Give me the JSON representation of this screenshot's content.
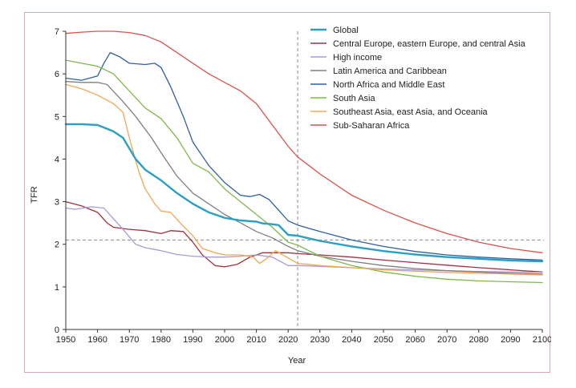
{
  "chart_data": {
    "type": "line",
    "title": "",
    "xlabel": "Year",
    "ylabel": "TFR",
    "xlim": [
      1950,
      2100
    ],
    "ylim": [
      0,
      7
    ],
    "xticks": [
      1950,
      1960,
      1970,
      1980,
      1990,
      2000,
      2010,
      2020,
      2030,
      2040,
      2050,
      2060,
      2070,
      2080,
      2090,
      2100
    ],
    "yticks": [
      0,
      1,
      2,
      3,
      4,
      5,
      6,
      7
    ],
    "grid": false,
    "legend_position": "top-right",
    "reference_lines": [
      {
        "orientation": "horizontal",
        "value": 2.1,
        "style": "dashed"
      },
      {
        "orientation": "vertical",
        "value": 2023,
        "style": "dashed"
      }
    ],
    "series": [
      {
        "name": "Global",
        "color": "#2a9fc3",
        "width": 2.4,
        "points": [
          [
            1950,
            4.82
          ],
          [
            1955,
            4.82
          ],
          [
            1960,
            4.8
          ],
          [
            1965,
            4.65
          ],
          [
            1968,
            4.5
          ],
          [
            1972,
            4.0
          ],
          [
            1975,
            3.75
          ],
          [
            1980,
            3.5
          ],
          [
            1985,
            3.2
          ],
          [
            1990,
            2.95
          ],
          [
            1995,
            2.75
          ],
          [
            2000,
            2.62
          ],
          [
            2005,
            2.56
          ],
          [
            2010,
            2.53
          ],
          [
            2012,
            2.49
          ],
          [
            2015,
            2.47
          ],
          [
            2017,
            2.45
          ],
          [
            2020,
            2.22
          ],
          [
            2023,
            2.2
          ],
          [
            2030,
            2.08
          ],
          [
            2040,
            1.95
          ],
          [
            2050,
            1.84
          ],
          [
            2060,
            1.76
          ],
          [
            2070,
            1.7
          ],
          [
            2080,
            1.66
          ],
          [
            2090,
            1.62
          ],
          [
            2100,
            1.6
          ]
        ]
      },
      {
        "name": "Central Europe, eastern Europe, and central Asia",
        "color": "#a0303c",
        "width": 1.3,
        "points": [
          [
            1950,
            3.0
          ],
          [
            1955,
            2.9
          ],
          [
            1960,
            2.75
          ],
          [
            1963,
            2.5
          ],
          [
            1965,
            2.4
          ],
          [
            1970,
            2.35
          ],
          [
            1975,
            2.32
          ],
          [
            1980,
            2.25
          ],
          [
            1983,
            2.32
          ],
          [
            1987,
            2.3
          ],
          [
            1990,
            2.05
          ],
          [
            1993,
            1.75
          ],
          [
            1997,
            1.5
          ],
          [
            2000,
            1.47
          ],
          [
            2004,
            1.53
          ],
          [
            2008,
            1.7
          ],
          [
            2012,
            1.8
          ],
          [
            2015,
            1.8
          ],
          [
            2020,
            1.8
          ],
          [
            2023,
            1.78
          ],
          [
            2030,
            1.75
          ],
          [
            2040,
            1.7
          ],
          [
            2050,
            1.63
          ],
          [
            2060,
            1.57
          ],
          [
            2070,
            1.51
          ],
          [
            2080,
            1.45
          ],
          [
            2090,
            1.4
          ],
          [
            2100,
            1.35
          ]
        ]
      },
      {
        "name": "High income",
        "color": "#a89ad6",
        "width": 1.3,
        "points": [
          [
            1950,
            2.85
          ],
          [
            1953,
            2.82
          ],
          [
            1958,
            2.88
          ],
          [
            1962,
            2.85
          ],
          [
            1965,
            2.6
          ],
          [
            1968,
            2.35
          ],
          [
            1972,
            2.0
          ],
          [
            1975,
            1.92
          ],
          [
            1980,
            1.85
          ],
          [
            1985,
            1.76
          ],
          [
            1990,
            1.72
          ],
          [
            1995,
            1.7
          ],
          [
            2000,
            1.7
          ],
          [
            2005,
            1.72
          ],
          [
            2010,
            1.75
          ],
          [
            2015,
            1.7
          ],
          [
            2020,
            1.5
          ],
          [
            2023,
            1.5
          ],
          [
            2030,
            1.48
          ],
          [
            2040,
            1.45
          ],
          [
            2050,
            1.42
          ],
          [
            2060,
            1.4
          ],
          [
            2070,
            1.38
          ],
          [
            2080,
            1.36
          ],
          [
            2090,
            1.35
          ],
          [
            2100,
            1.34
          ]
        ]
      },
      {
        "name": "Latin America and Caribbean",
        "color": "#7f7f7f",
        "width": 1.3,
        "points": [
          [
            1950,
            5.82
          ],
          [
            1955,
            5.8
          ],
          [
            1960,
            5.8
          ],
          [
            1963,
            5.75
          ],
          [
            1968,
            5.35
          ],
          [
            1972,
            5.0
          ],
          [
            1977,
            4.5
          ],
          [
            1980,
            4.15
          ],
          [
            1985,
            3.6
          ],
          [
            1990,
            3.2
          ],
          [
            1995,
            2.95
          ],
          [
            2000,
            2.7
          ],
          [
            2005,
            2.5
          ],
          [
            2010,
            2.3
          ],
          [
            2015,
            2.15
          ],
          [
            2020,
            1.95
          ],
          [
            2023,
            1.85
          ],
          [
            2030,
            1.72
          ],
          [
            2040,
            1.6
          ],
          [
            2050,
            1.5
          ],
          [
            2060,
            1.43
          ],
          [
            2070,
            1.38
          ],
          [
            2080,
            1.35
          ],
          [
            2090,
            1.32
          ],
          [
            2100,
            1.3
          ]
        ]
      },
      {
        "name": "North Africa and Middle East",
        "color": "#2f5f9e",
        "width": 1.3,
        "points": [
          [
            1950,
            5.9
          ],
          [
            1955,
            5.85
          ],
          [
            1960,
            5.95
          ],
          [
            1962,
            6.25
          ],
          [
            1964,
            6.5
          ],
          [
            1967,
            6.4
          ],
          [
            1970,
            6.25
          ],
          [
            1975,
            6.22
          ],
          [
            1978,
            6.25
          ],
          [
            1980,
            6.15
          ],
          [
            1983,
            5.7
          ],
          [
            1987,
            5.0
          ],
          [
            1990,
            4.4
          ],
          [
            1995,
            3.85
          ],
          [
            2000,
            3.45
          ],
          [
            2005,
            3.15
          ],
          [
            2008,
            3.12
          ],
          [
            2011,
            3.17
          ],
          [
            2014,
            3.05
          ],
          [
            2017,
            2.8
          ],
          [
            2020,
            2.55
          ],
          [
            2023,
            2.45
          ],
          [
            2030,
            2.3
          ],
          [
            2040,
            2.1
          ],
          [
            2050,
            1.95
          ],
          [
            2060,
            1.83
          ],
          [
            2070,
            1.75
          ],
          [
            2080,
            1.7
          ],
          [
            2090,
            1.66
          ],
          [
            2100,
            1.63
          ]
        ]
      },
      {
        "name": "South Asia",
        "color": "#7fb84a",
        "width": 1.3,
        "points": [
          [
            1950,
            6.32
          ],
          [
            1955,
            6.25
          ],
          [
            1960,
            6.18
          ],
          [
            1965,
            6.0
          ],
          [
            1970,
            5.6
          ],
          [
            1975,
            5.2
          ],
          [
            1980,
            4.95
          ],
          [
            1985,
            4.5
          ],
          [
            1990,
            3.9
          ],
          [
            1995,
            3.7
          ],
          [
            2000,
            3.3
          ],
          [
            2005,
            3.0
          ],
          [
            2010,
            2.7
          ],
          [
            2015,
            2.4
          ],
          [
            2020,
            2.05
          ],
          [
            2023,
            1.98
          ],
          [
            2030,
            1.72
          ],
          [
            2040,
            1.5
          ],
          [
            2050,
            1.35
          ],
          [
            2060,
            1.25
          ],
          [
            2070,
            1.18
          ],
          [
            2080,
            1.14
          ],
          [
            2090,
            1.12
          ],
          [
            2100,
            1.1
          ]
        ]
      },
      {
        "name": "Southeast Asia, east Asia, and Oceania",
        "color": "#f2a651",
        "width": 1.3,
        "points": [
          [
            1950,
            5.75
          ],
          [
            1955,
            5.65
          ],
          [
            1960,
            5.5
          ],
          [
            1965,
            5.3
          ],
          [
            1968,
            5.1
          ],
          [
            1970,
            4.5
          ],
          [
            1973,
            3.7
          ],
          [
            1975,
            3.3
          ],
          [
            1978,
            2.95
          ],
          [
            1980,
            2.78
          ],
          [
            1983,
            2.75
          ],
          [
            1986,
            2.5
          ],
          [
            1990,
            2.2
          ],
          [
            1993,
            1.9
          ],
          [
            1997,
            1.8
          ],
          [
            2000,
            1.75
          ],
          [
            2005,
            1.75
          ],
          [
            2009,
            1.7
          ],
          [
            2011,
            1.55
          ],
          [
            2013,
            1.65
          ],
          [
            2016,
            1.85
          ],
          [
            2019,
            1.72
          ],
          [
            2023,
            1.55
          ],
          [
            2030,
            1.5
          ],
          [
            2040,
            1.45
          ],
          [
            2050,
            1.4
          ],
          [
            2060,
            1.37
          ],
          [
            2070,
            1.34
          ],
          [
            2080,
            1.32
          ],
          [
            2090,
            1.3
          ],
          [
            2100,
            1.28
          ]
        ]
      },
      {
        "name": "Sub-Saharan Africa",
        "color": "#d9534a",
        "width": 1.3,
        "points": [
          [
            1950,
            6.95
          ],
          [
            1955,
            6.98
          ],
          [
            1960,
            7.0
          ],
          [
            1965,
            7.0
          ],
          [
            1970,
            6.97
          ],
          [
            1975,
            6.9
          ],
          [
            1980,
            6.75
          ],
          [
            1985,
            6.5
          ],
          [
            1990,
            6.25
          ],
          [
            1995,
            6.0
          ],
          [
            2000,
            5.8
          ],
          [
            2005,
            5.6
          ],
          [
            2010,
            5.3
          ],
          [
            2015,
            4.8
          ],
          [
            2020,
            4.3
          ],
          [
            2023,
            4.05
          ],
          [
            2030,
            3.65
          ],
          [
            2040,
            3.15
          ],
          [
            2050,
            2.8
          ],
          [
            2060,
            2.5
          ],
          [
            2070,
            2.25
          ],
          [
            2080,
            2.05
          ],
          [
            2090,
            1.9
          ],
          [
            2100,
            1.8
          ]
        ]
      }
    ]
  }
}
